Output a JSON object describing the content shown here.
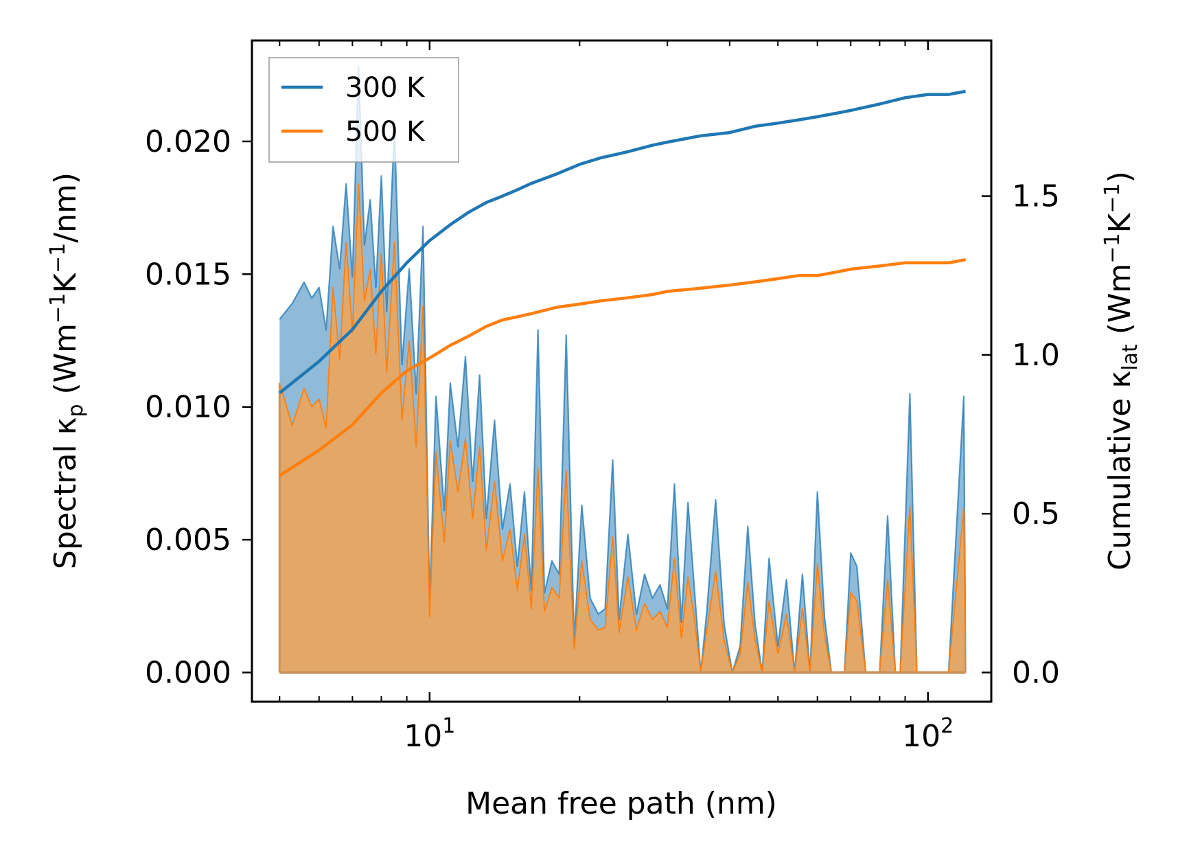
{
  "chart_data": {
    "type": "line",
    "title": "",
    "xlabel": "Mean free path (nm)",
    "ylabel": "Spectral κp (Wm⁻¹K⁻¹/nm)",
    "ylabel_parts": {
      "pre": "Spectral κ",
      "sub": "p",
      "post1": " (Wm",
      "sup1": "−1",
      "post2": "K",
      "sup2": "−1",
      "post3": "/nm)"
    },
    "y2label": "Cumulative κlat (Wm⁻¹K⁻¹)",
    "y2label_parts": {
      "pre": "Cumulative κ",
      "sub": "lat",
      "post1": " (Wm",
      "sup1": "−1",
      "post2": "K",
      "sup2": "−1",
      "post3": ")"
    },
    "xscale": "log",
    "xlim": [
      4.4,
      134
    ],
    "ylim": [
      -0.0011,
      0.0238
    ],
    "y2lim": [
      -0.092,
      1.99
    ],
    "x_major_ticks": [
      {
        "value": 10,
        "base": "10",
        "exp": "1"
      },
      {
        "value": 100,
        "base": "10",
        "exp": "2"
      }
    ],
    "x_minor_ticks": [
      5,
      6,
      7,
      8,
      9,
      20,
      30,
      40,
      50,
      60,
      70,
      80,
      90
    ],
    "y_ticks": [
      {
        "value": 0.0,
        "label": "0.000"
      },
      {
        "value": 0.005,
        "label": "0.005"
      },
      {
        "value": 0.01,
        "label": "0.010"
      },
      {
        "value": 0.015,
        "label": "0.015"
      },
      {
        "value": 0.02,
        "label": "0.020"
      }
    ],
    "y2_ticks": [
      {
        "value": 0.0,
        "label": "0.0"
      },
      {
        "value": 0.5,
        "label": "0.5"
      },
      {
        "value": 1.0,
        "label": "1.0"
      },
      {
        "value": 1.5,
        "label": "1.5"
      }
    ],
    "legend": {
      "position": "top-left",
      "entries": [
        "300 K",
        "500 K"
      ]
    },
    "colors": {
      "300 K": "#1f77b4",
      "500 K": "#ff7f0e",
      "fill_300": "#1f77b4",
      "fill_500": "#e3a868"
    },
    "spectral": {
      "x": [
        5.0,
        5.3,
        5.6,
        5.8,
        6.0,
        6.2,
        6.4,
        6.6,
        6.8,
        7.0,
        7.2,
        7.4,
        7.6,
        7.8,
        8.0,
        8.2,
        8.5,
        8.8,
        9.1,
        9.4,
        9.7,
        10.0,
        10.3,
        10.7,
        11.0,
        11.4,
        11.8,
        12.2,
        12.6,
        13.0,
        13.5,
        14.0,
        14.5,
        15.0,
        15.5,
        16.0,
        16.5,
        17.0,
        17.6,
        18.2,
        18.8,
        19.5,
        20.2,
        21.0,
        21.8,
        22.5,
        23.3,
        24.0,
        25.0,
        26.0,
        27.0,
        28.0,
        29.0,
        30.0,
        31.0,
        32.0,
        33.0,
        34.0,
        35.0,
        36.0,
        37.5,
        39.0,
        40.5,
        42.0,
        43.5,
        45.0,
        46.5,
        48.0,
        50.0,
        52.0,
        54.0,
        56.0,
        58.0,
        60.0,
        62.0,
        64.0,
        66.0,
        68.0,
        70.0,
        72.0,
        75.0,
        78.0,
        80.0,
        83.0,
        86.0,
        88.0,
        92.0,
        95.0,
        100.0,
        110.0,
        118.0,
        119.0
      ],
      "series": [
        {
          "name": "300 K",
          "values": [
            0.0133,
            0.0139,
            0.0147,
            0.0141,
            0.0145,
            0.0129,
            0.0168,
            0.0152,
            0.0184,
            0.0149,
            0.0228,
            0.0161,
            0.0178,
            0.0145,
            0.0187,
            0.0136,
            0.0205,
            0.0116,
            0.0152,
            0.0105,
            0.0168,
            0.0026,
            0.0104,
            0.0061,
            0.0109,
            0.0085,
            0.0119,
            0.0072,
            0.0112,
            0.0058,
            0.0095,
            0.0054,
            0.0071,
            0.004,
            0.0068,
            0.0031,
            0.0129,
            0.003,
            0.0042,
            0.0037,
            0.0127,
            0.0012,
            0.0063,
            0.0028,
            0.0022,
            0.0024,
            0.008,
            0.002,
            0.0052,
            0.0022,
            0.0037,
            0.0028,
            0.0033,
            0.0024,
            0.0071,
            0.0019,
            0.0064,
            0.0031,
            0.0,
            0.0023,
            0.0065,
            0.0018,
            0.0,
            0.001,
            0.0055,
            0.0018,
            0.0,
            0.0043,
            0.001,
            0.0035,
            0.0,
            0.0037,
            0.0,
            0.0068,
            0.0021,
            0.0,
            0.0,
            0.0,
            0.0045,
            0.004,
            0.0,
            0.0,
            0.0,
            0.0059,
            0.0,
            0.0,
            0.0105,
            0.0,
            0.0,
            0.0,
            0.0104,
            0.0
          ]
        },
        {
          "name": "500 K",
          "values": [
            0.0109,
            0.0093,
            0.0107,
            0.01,
            0.0103,
            0.0092,
            0.0145,
            0.0118,
            0.0162,
            0.0128,
            0.0184,
            0.014,
            0.0152,
            0.012,
            0.0158,
            0.0113,
            0.0162,
            0.0095,
            0.0125,
            0.0085,
            0.0138,
            0.0021,
            0.0083,
            0.0049,
            0.0087,
            0.0068,
            0.0088,
            0.0058,
            0.0085,
            0.0046,
            0.0072,
            0.0042,
            0.0054,
            0.0031,
            0.0052,
            0.0024,
            0.0077,
            0.0023,
            0.0032,
            0.0028,
            0.0076,
            0.0009,
            0.0042,
            0.002,
            0.0016,
            0.0017,
            0.0051,
            0.0015,
            0.0036,
            0.0016,
            0.0026,
            0.002,
            0.0023,
            0.0017,
            0.0043,
            0.0013,
            0.0036,
            0.002,
            0.0,
            0.0016,
            0.0038,
            0.0012,
            0.0,
            0.0007,
            0.0034,
            0.0012,
            0.0,
            0.0027,
            0.0007,
            0.0022,
            0.0,
            0.0024,
            0.0,
            0.0041,
            0.0014,
            0.0,
            0.0,
            0.0,
            0.003,
            0.0027,
            0.0,
            0.0,
            0.0,
            0.0035,
            0.0,
            0.0,
            0.0063,
            0.0,
            0.0,
            0.0,
            0.0062,
            0.0
          ]
        }
      ]
    },
    "cumulative": {
      "x": [
        5.0,
        6.0,
        7.0,
        8.0,
        9.0,
        10.0,
        11.0,
        12.0,
        13.0,
        14.0,
        15.0,
        16.0,
        18.0,
        20.0,
        22.0,
        25.0,
        28.0,
        30.0,
        35.0,
        40.0,
        45.0,
        50.0,
        55.0,
        60.0,
        65.0,
        70.0,
        80.0,
        90.0,
        100.0,
        110.0,
        119.0
      ],
      "series": [
        {
          "name": "300 K",
          "values": [
            0.88,
            0.98,
            1.08,
            1.2,
            1.29,
            1.36,
            1.41,
            1.45,
            1.48,
            1.5,
            1.52,
            1.54,
            1.57,
            1.6,
            1.62,
            1.64,
            1.66,
            1.67,
            1.69,
            1.7,
            1.72,
            1.73,
            1.74,
            1.75,
            1.76,
            1.77,
            1.79,
            1.81,
            1.82,
            1.82,
            1.83
          ]
        },
        {
          "name": "500 K",
          "values": [
            0.62,
            0.7,
            0.78,
            0.88,
            0.95,
            0.99,
            1.03,
            1.06,
            1.09,
            1.11,
            1.12,
            1.13,
            1.15,
            1.16,
            1.17,
            1.18,
            1.19,
            1.2,
            1.21,
            1.22,
            1.23,
            1.24,
            1.25,
            1.25,
            1.26,
            1.27,
            1.28,
            1.29,
            1.29,
            1.29,
            1.3
          ]
        }
      ]
    }
  }
}
